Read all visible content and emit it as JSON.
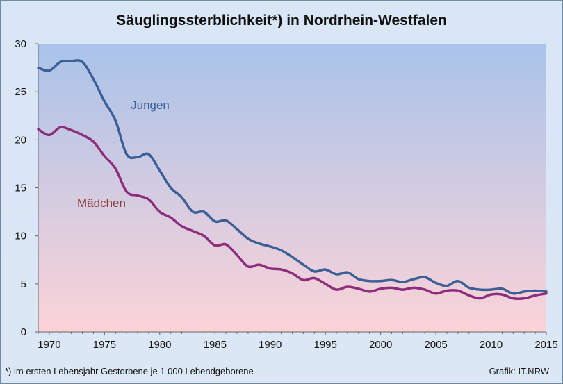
{
  "title": "Säuglingssterblichkeit*) in Nordrhein-Westfalen",
  "footnote": "*) im ersten Lebensjahr  Gestorbene  je 1 000 Lebendgeborene",
  "credit": "Grafik: IT.NRW",
  "colors": {
    "jungen": "#3b5f96",
    "maedchen": "#8e2d7c",
    "plot_top": "#a9c3ea",
    "plot_bottom": "#fbd3d8",
    "jungen_label": "#3b5f96",
    "maedchen_label": "#8b3c3c"
  },
  "chart_data": {
    "type": "line",
    "title": "Säuglingssterblichkeit*) in Nordrhein-Westfalen",
    "xlabel": "",
    "ylabel": "",
    "xlim": [
      1969,
      2015
    ],
    "ylim": [
      0,
      30
    ],
    "x_ticks": [
      1970,
      1975,
      1980,
      1985,
      1990,
      1995,
      2000,
      2005,
      2010,
      2015
    ],
    "y_ticks": [
      0,
      5,
      10,
      15,
      20,
      25,
      30
    ],
    "grid": false,
    "x": [
      1969,
      1970,
      1971,
      1972,
      1973,
      1974,
      1975,
      1976,
      1977,
      1978,
      1979,
      1980,
      1981,
      1982,
      1983,
      1984,
      1985,
      1986,
      1987,
      1988,
      1989,
      1990,
      1991,
      1992,
      1993,
      1994,
      1995,
      1996,
      1997,
      1998,
      1999,
      2000,
      2001,
      2002,
      2003,
      2004,
      2005,
      2006,
      2007,
      2008,
      2009,
      2010,
      2011,
      2012,
      2013,
      2014,
      2015
    ],
    "series": [
      {
        "name": "Jungen",
        "values": [
          27.5,
          27.2,
          28.1,
          28.2,
          28.1,
          26.3,
          24.0,
          22.0,
          18.5,
          18.2,
          18.5,
          16.8,
          15.0,
          14.0,
          12.5,
          12.5,
          11.5,
          11.6,
          10.7,
          9.7,
          9.2,
          8.9,
          8.5,
          7.8,
          7.0,
          6.3,
          6.5,
          6.0,
          6.2,
          5.5,
          5.3,
          5.3,
          5.4,
          5.2,
          5.5,
          5.7,
          5.1,
          4.8,
          5.3,
          4.6,
          4.4,
          4.4,
          4.5,
          4.0,
          4.2,
          4.3,
          4.2
        ]
      },
      {
        "name": "Mädchen",
        "values": [
          21.1,
          20.5,
          21.3,
          21.0,
          20.5,
          19.8,
          18.3,
          17.0,
          14.6,
          14.2,
          13.8,
          12.5,
          11.9,
          11.0,
          10.5,
          10.0,
          9.0,
          9.1,
          8.0,
          6.8,
          7.0,
          6.6,
          6.5,
          6.1,
          5.4,
          5.6,
          5.0,
          4.4,
          4.7,
          4.5,
          4.2,
          4.5,
          4.6,
          4.4,
          4.6,
          4.4,
          4.0,
          4.3,
          4.3,
          3.8,
          3.5,
          3.9,
          3.9,
          3.5,
          3.5,
          3.8,
          4.0
        ]
      }
    ],
    "annotations": [
      {
        "text": "Jungen",
        "series": "Jungen"
      },
      {
        "text": "Mädchen",
        "series": "Mädchen"
      }
    ]
  }
}
